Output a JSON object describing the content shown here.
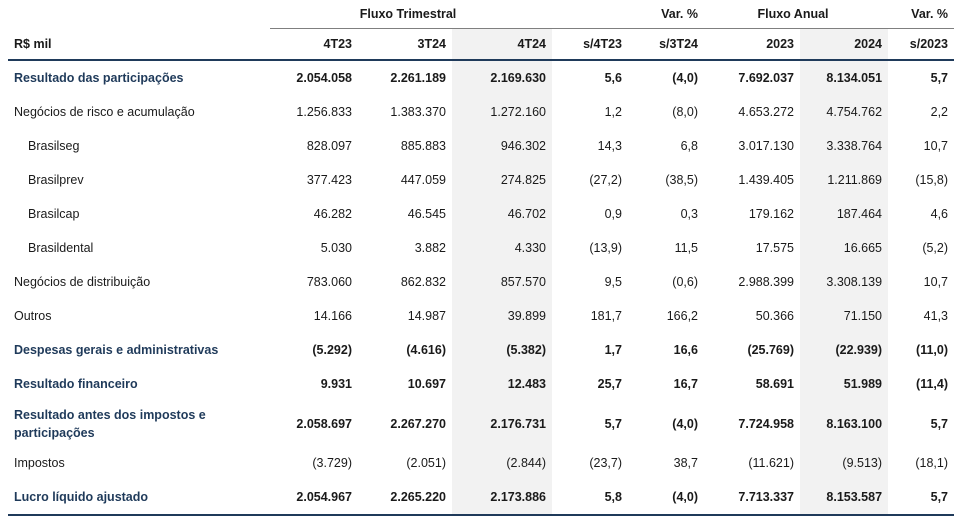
{
  "header": {
    "group_trimestral": "Fluxo Trimestral",
    "group_var1": "Var. %",
    "group_anual": "Fluxo Anual",
    "group_var2": "Var. %",
    "columns": [
      "R$ mil",
      "4T23",
      "3T24",
      "4T24",
      "s/4T23",
      "s/3T24",
      "2023",
      "2024",
      "s/2023"
    ]
  },
  "rows": [
    {
      "label": "Resultado das participações",
      "values": [
        "2.054.058",
        "2.261.189",
        "2.169.630",
        "5,6",
        "(4,0)",
        "7.692.037",
        "8.134.051",
        "5,7"
      ]
    },
    {
      "label": "Negócios de risco e acumulação",
      "values": [
        "1.256.833",
        "1.383.370",
        "1.272.160",
        "1,2",
        "(8,0)",
        "4.653.272",
        "4.754.762",
        "2,2"
      ]
    },
    {
      "label": "Brasilseg",
      "values": [
        "828.097",
        "885.883",
        "946.302",
        "14,3",
        "6,8",
        "3.017.130",
        "3.338.764",
        "10,7"
      ]
    },
    {
      "label": "Brasilprev",
      "values": [
        "377.423",
        "447.059",
        "274.825",
        "(27,2)",
        "(38,5)",
        "1.439.405",
        "1.211.869",
        "(15,8)"
      ]
    },
    {
      "label": "Brasilcap",
      "values": [
        "46.282",
        "46.545",
        "46.702",
        "0,9",
        "0,3",
        "179.162",
        "187.464",
        "4,6"
      ]
    },
    {
      "label": "Brasildental",
      "values": [
        "5.030",
        "3.882",
        "4.330",
        "(13,9)",
        "11,5",
        "17.575",
        "16.665",
        "(5,2)"
      ]
    },
    {
      "label": "Negócios de distribuição",
      "values": [
        "783.060",
        "862.832",
        "857.570",
        "9,5",
        "(0,6)",
        "2.988.399",
        "3.308.139",
        "10,7"
      ]
    },
    {
      "label": "Outros",
      "values": [
        "14.166",
        "14.987",
        "39.899",
        "181,7",
        "166,2",
        "50.366",
        "71.150",
        "41,3"
      ]
    },
    {
      "label": "Despesas gerais e administrativas",
      "values": [
        "(5.292)",
        "(4.616)",
        "(5.382)",
        "1,7",
        "16,6",
        "(25.769)",
        "(22.939)",
        "(11,0)"
      ]
    },
    {
      "label": "Resultado financeiro",
      "values": [
        "9.931",
        "10.697",
        "12.483",
        "25,7",
        "16,7",
        "58.691",
        "51.989",
        "(11,4)"
      ]
    },
    {
      "label": "Resultado antes dos impostos e participações",
      "values": [
        "2.058.697",
        "2.267.270",
        "2.176.731",
        "5,7",
        "(4,0)",
        "7.724.958",
        "8.163.100",
        "5,7"
      ]
    },
    {
      "label": "Impostos",
      "values": [
        "(3.729)",
        "(2.051)",
        "(2.844)",
        "(23,7)",
        "38,7",
        "(11.621)",
        "(9.513)",
        "(18,1)"
      ]
    },
    {
      "label": "Lucro líquido ajustado",
      "values": [
        "2.054.967",
        "2.265.220",
        "2.173.886",
        "5,8",
        "(4,0)",
        "7.713.337",
        "8.153.587",
        "5,7"
      ]
    }
  ],
  "colors": {
    "accent": "#1f3a5a",
    "shade": "#f2f2f2"
  }
}
